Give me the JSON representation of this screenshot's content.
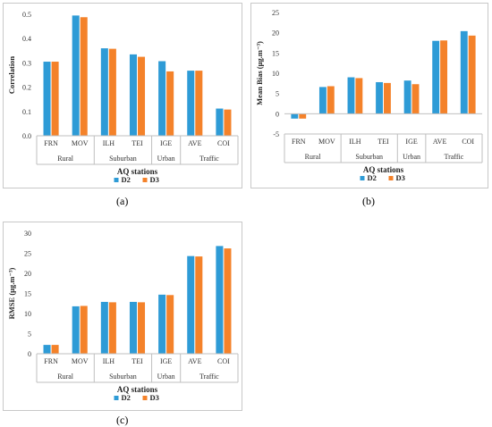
{
  "colors": {
    "D2": "#2e9bd6",
    "D3": "#f4822a"
  },
  "captions": {
    "a": "(a)",
    "b": "(b)",
    "c": "(c)"
  },
  "chart_data": [
    {
      "id": "a",
      "type": "bar",
      "categories": [
        "FRN",
        "MOV",
        "ILH",
        "TEI",
        "IGE",
        "AVE",
        "COI"
      ],
      "groups": [
        {
          "label": "Rural",
          "span": 2
        },
        {
          "label": "Suburban",
          "span": 2
        },
        {
          "label": "Urban",
          "span": 1
        },
        {
          "label": "Traffic",
          "span": 2
        }
      ],
      "series": [
        {
          "name": "D2",
          "values": [
            0.305,
            0.495,
            0.36,
            0.335,
            0.307,
            0.268,
            0.112
          ]
        },
        {
          "name": "D3",
          "values": [
            0.305,
            0.488,
            0.358,
            0.325,
            0.265,
            0.268,
            0.108
          ]
        }
      ],
      "ylabel": "Correlation",
      "xlabel": "AQ stations",
      "ylim": [
        0,
        0.5
      ],
      "yticks": [
        "0.0",
        "0.1",
        "0.2",
        "0.3",
        "0.4",
        "0.5"
      ],
      "grid": false,
      "legend": "bottom"
    },
    {
      "id": "b",
      "type": "bar",
      "categories": [
        "FRN",
        "MOV",
        "ILH",
        "TEI",
        "IGE",
        "AVE",
        "COI"
      ],
      "groups": [
        {
          "label": "Rural",
          "span": 2
        },
        {
          "label": "Suburban",
          "span": 2
        },
        {
          "label": "Urban",
          "span": 1
        },
        {
          "label": "Traffic",
          "span": 2
        }
      ],
      "series": [
        {
          "name": "D2",
          "values": [
            -1.2,
            6.6,
            9.0,
            7.8,
            8.2,
            18.0,
            20.4
          ]
        },
        {
          "name": "D3",
          "values": [
            -1.2,
            6.8,
            8.8,
            7.6,
            7.3,
            18.1,
            19.3
          ]
        }
      ],
      "ylabel": "Mean Bias (µg.m⁻³)",
      "xlabel": "AQ stations",
      "ylim": [
        -5,
        25
      ],
      "yticks": [
        "-5",
        "0",
        "5",
        "10",
        "15",
        "20",
        "25"
      ],
      "grid": false,
      "legend": "bottom"
    },
    {
      "id": "c",
      "type": "bar",
      "categories": [
        "FRN",
        "MOV",
        "ILH",
        "TEI",
        "IGE",
        "AVE",
        "COI"
      ],
      "groups": [
        {
          "label": "Rural",
          "span": 2
        },
        {
          "label": "Suburban",
          "span": 2
        },
        {
          "label": "Urban",
          "span": 1
        },
        {
          "label": "Traffic",
          "span": 2
        }
      ],
      "series": [
        {
          "name": "D2",
          "values": [
            2.2,
            11.8,
            12.9,
            12.9,
            14.7,
            24.3,
            26.8
          ]
        },
        {
          "name": "D3",
          "values": [
            2.2,
            11.9,
            12.8,
            12.8,
            14.6,
            24.2,
            26.2
          ]
        }
      ],
      "ylabel": "RMSE (µg.m⁻³)",
      "xlabel": "AQ stations",
      "ylim": [
        0,
        30
      ],
      "yticks": [
        "0",
        "5",
        "10",
        "15",
        "20",
        "25",
        "30"
      ],
      "grid": false,
      "legend": "bottom"
    }
  ]
}
